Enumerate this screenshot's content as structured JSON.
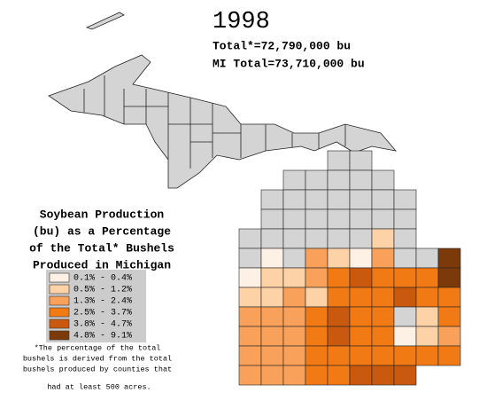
{
  "map": {
    "year": "1998",
    "total": "Total*=72,790,000 bu",
    "mi_total": "MI Total=73,710,000 bu",
    "description": [
      "Soybean Production",
      "(bu) as a Percentage",
      "of the Total* Bushels",
      "Produced in Michigan"
    ],
    "legend": [
      {
        "label": "0.1% - 0.4%",
        "color": "#fdf1e6"
      },
      {
        "label": "0.5% - 1.2%",
        "color": "#fdd2a6"
      },
      {
        "label": "1.3% - 2.4%",
        "color": "#f9a15a"
      },
      {
        "label": "2.5% - 3.7%",
        "color": "#f27a14"
      },
      {
        "label": "3.8% - 4.7%",
        "color": "#c8590f"
      },
      {
        "label": "4.8% - 9.1%",
        "color": "#7c3a0a"
      }
    ],
    "footnote": [
      "*The percentage of the total",
      "bushels is derived from the  total",
      "bushels produced by counties that",
      "had at least 500 acres."
    ]
  }
}
